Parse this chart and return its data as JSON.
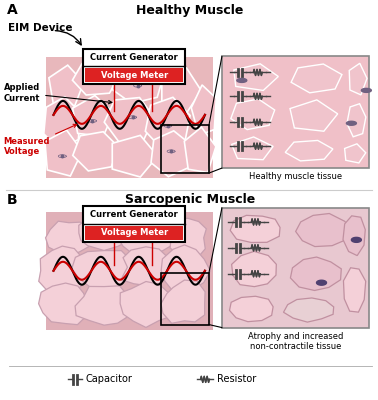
{
  "title_A": "Healthy Muscle",
  "title_B": "Sarcopenic Muscle",
  "label_A": "A",
  "label_B": "B",
  "eim_device_label": "EIM Device",
  "current_generator": "Current Generator",
  "voltage_meter": "Voltage Meter",
  "applied_current": "Applied\nCurrent",
  "measured_voltage": "Measured\nVoltage",
  "healthy_tissue_label": "Healthy muscle tissue",
  "sarcopenic_tissue_label": "Atrophy and increased\nnon-contractile tissue",
  "legend_capacitor": "Capacitor",
  "legend_resistor": "Resistor",
  "bg_color": "#ffffff",
  "muscle_healthy_bg": "#e8b8bc",
  "muscle_healthy_cell": "#f0c0c8",
  "muscle_healthy_border": "#d4a0a8",
  "muscle_healthy_white": "#f8e8ea",
  "muscle_sarco_bg": "#e0b0b8",
  "muscle_sarco_cell": "#e8c0c8",
  "muscle_sarco_border": "#c8a0a8",
  "muscle_sarco_fat": "#f0d0d8",
  "nucleus_color": "#706080",
  "circuit_color": "#444444",
  "wave_black": "#111111",
  "wave_red": "#cc0000",
  "electrode_red": "#cc0000",
  "zoom_line_color": "#555555"
}
